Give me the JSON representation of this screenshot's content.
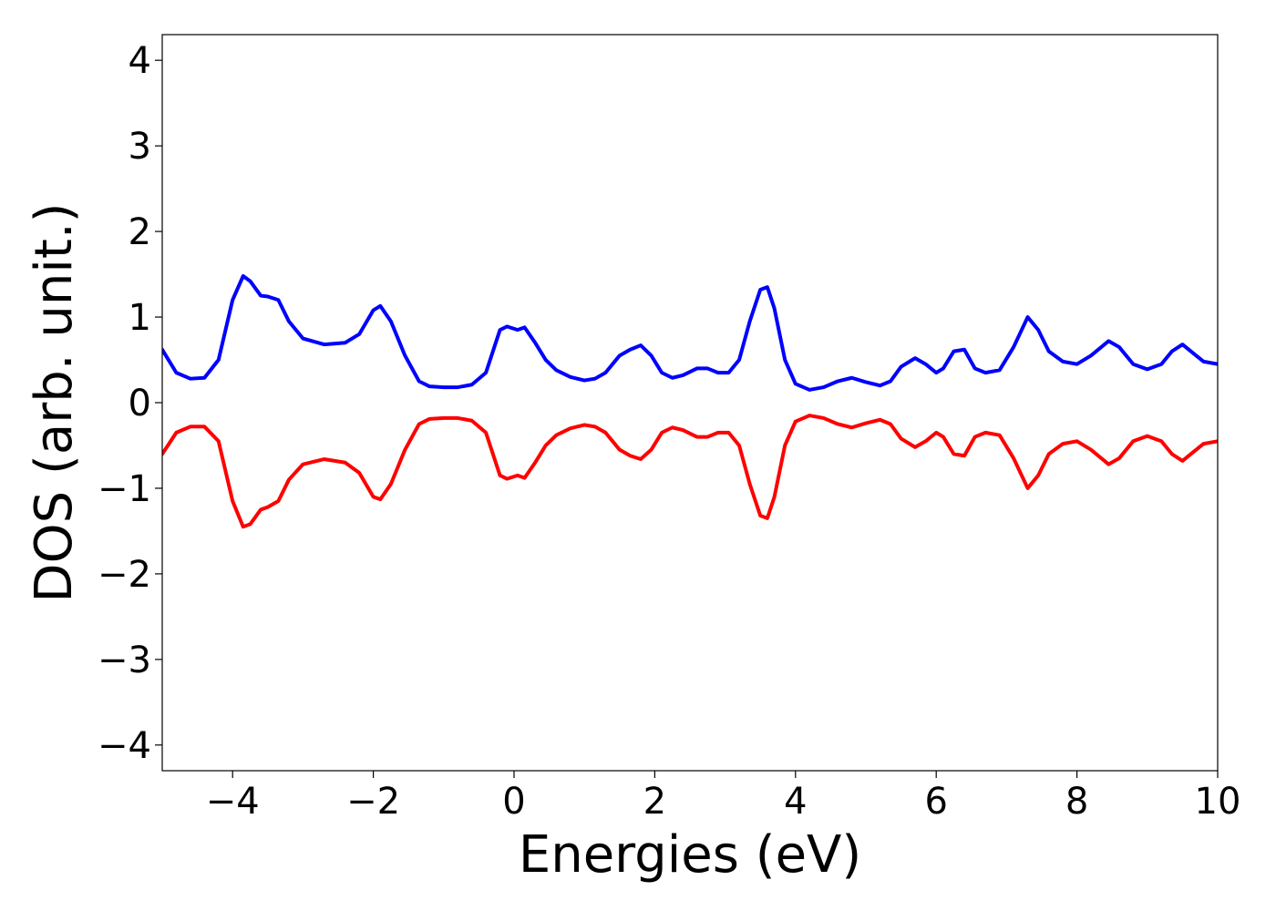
{
  "chart_data": {
    "type": "line",
    "title": "",
    "xlabel": "Energies (eV)",
    "ylabel": "DOS (arb. unit.)",
    "xlim": [
      -5,
      10
    ],
    "ylim": [
      -4.3,
      4.3
    ],
    "xticks": [
      -4,
      -2,
      0,
      2,
      4,
      6,
      8,
      10
    ],
    "yticks": [
      -4,
      -3,
      -2,
      -1,
      0,
      1,
      2,
      3,
      4
    ],
    "xtick_labels": [
      "−4",
      "−2",
      "0",
      "2",
      "4",
      "6",
      "8",
      "10"
    ],
    "ytick_labels": [
      "−4",
      "−3",
      "−2",
      "−1",
      "0",
      "1",
      "2",
      "3",
      "4"
    ],
    "grid": false,
    "legend": false,
    "series": [
      {
        "color": "#0000ff",
        "x": [
          -5.0,
          -4.8,
          -4.6,
          -4.4,
          -4.2,
          -4.0,
          -3.85,
          -3.75,
          -3.6,
          -3.5,
          -3.35,
          -3.2,
          -3.0,
          -2.7,
          -2.4,
          -2.2,
          -2.0,
          -1.9,
          -1.75,
          -1.55,
          -1.35,
          -1.2,
          -1.0,
          -0.8,
          -0.6,
          -0.4,
          -0.2,
          -0.1,
          0.05,
          0.15,
          0.3,
          0.45,
          0.6,
          0.8,
          1.0,
          1.15,
          1.3,
          1.5,
          1.65,
          1.8,
          1.95,
          2.1,
          2.25,
          2.4,
          2.6,
          2.75,
          2.9,
          3.05,
          3.2,
          3.35,
          3.5,
          3.6,
          3.7,
          3.85,
          4.0,
          4.2,
          4.4,
          4.6,
          4.8,
          5.0,
          5.2,
          5.35,
          5.5,
          5.7,
          5.85,
          6.0,
          6.1,
          6.25,
          6.4,
          6.55,
          6.7,
          6.9,
          7.1,
          7.3,
          7.45,
          7.6,
          7.8,
          8.0,
          8.2,
          8.45,
          8.6,
          8.8,
          9.0,
          9.2,
          9.35,
          9.5,
          9.65,
          9.8,
          10.0
        ],
        "y": [
          0.62,
          0.35,
          0.28,
          0.29,
          0.5,
          1.2,
          1.48,
          1.42,
          1.25,
          1.24,
          1.2,
          0.95,
          0.75,
          0.68,
          0.7,
          0.8,
          1.08,
          1.13,
          0.95,
          0.55,
          0.25,
          0.19,
          0.18,
          0.18,
          0.21,
          0.35,
          0.85,
          0.89,
          0.85,
          0.88,
          0.7,
          0.5,
          0.38,
          0.3,
          0.26,
          0.28,
          0.35,
          0.55,
          0.62,
          0.67,
          0.55,
          0.35,
          0.29,
          0.32,
          0.4,
          0.4,
          0.35,
          0.35,
          0.5,
          0.95,
          1.32,
          1.35,
          1.1,
          0.5,
          0.22,
          0.15,
          0.18,
          0.25,
          0.29,
          0.24,
          0.2,
          0.25,
          0.42,
          0.52,
          0.45,
          0.35,
          0.4,
          0.6,
          0.62,
          0.4,
          0.35,
          0.38,
          0.65,
          1.0,
          0.85,
          0.6,
          0.48,
          0.45,
          0.55,
          0.72,
          0.65,
          0.45,
          0.39,
          0.45,
          0.6,
          0.68,
          0.58,
          0.48,
          0.45
        ]
      },
      {
        "color": "#ff0000",
        "x": [
          -5.0,
          -4.8,
          -4.6,
          -4.4,
          -4.2,
          -4.0,
          -3.85,
          -3.75,
          -3.6,
          -3.5,
          -3.35,
          -3.2,
          -3.0,
          -2.7,
          -2.4,
          -2.2,
          -2.0,
          -1.9,
          -1.75,
          -1.55,
          -1.35,
          -1.2,
          -1.0,
          -0.8,
          -0.6,
          -0.4,
          -0.2,
          -0.1,
          0.05,
          0.15,
          0.3,
          0.45,
          0.6,
          0.8,
          1.0,
          1.15,
          1.3,
          1.5,
          1.65,
          1.8,
          1.95,
          2.1,
          2.25,
          2.4,
          2.6,
          2.75,
          2.9,
          3.05,
          3.2,
          3.35,
          3.5,
          3.6,
          3.7,
          3.85,
          4.0,
          4.2,
          4.4,
          4.6,
          4.8,
          5.0,
          5.2,
          5.35,
          5.5,
          5.7,
          5.85,
          6.0,
          6.1,
          6.25,
          6.4,
          6.55,
          6.7,
          6.9,
          7.1,
          7.3,
          7.45,
          7.6,
          7.8,
          8.0,
          8.2,
          8.45,
          8.6,
          8.8,
          9.0,
          9.2,
          9.35,
          9.5,
          9.65,
          9.8,
          10.0
        ],
        "y": [
          -0.6,
          -0.35,
          -0.28,
          -0.28,
          -0.45,
          -1.15,
          -1.45,
          -1.42,
          -1.25,
          -1.22,
          -1.15,
          -0.9,
          -0.72,
          -0.66,
          -0.7,
          -0.82,
          -1.1,
          -1.13,
          -0.95,
          -0.55,
          -0.25,
          -0.19,
          -0.18,
          -0.18,
          -0.21,
          -0.35,
          -0.85,
          -0.89,
          -0.85,
          -0.88,
          -0.7,
          -0.5,
          -0.38,
          -0.3,
          -0.26,
          -0.28,
          -0.35,
          -0.55,
          -0.62,
          -0.66,
          -0.55,
          -0.35,
          -0.29,
          -0.32,
          -0.4,
          -0.4,
          -0.35,
          -0.35,
          -0.5,
          -0.95,
          -1.32,
          -1.35,
          -1.1,
          -0.5,
          -0.22,
          -0.15,
          -0.18,
          -0.25,
          -0.29,
          -0.24,
          -0.2,
          -0.25,
          -0.42,
          -0.52,
          -0.45,
          -0.35,
          -0.4,
          -0.6,
          -0.62,
          -0.4,
          -0.35,
          -0.38,
          -0.65,
          -1.0,
          -0.85,
          -0.6,
          -0.48,
          -0.45,
          -0.55,
          -0.72,
          -0.65,
          -0.45,
          -0.39,
          -0.45,
          -0.6,
          -0.68,
          -0.58,
          -0.48,
          -0.45
        ]
      }
    ]
  }
}
